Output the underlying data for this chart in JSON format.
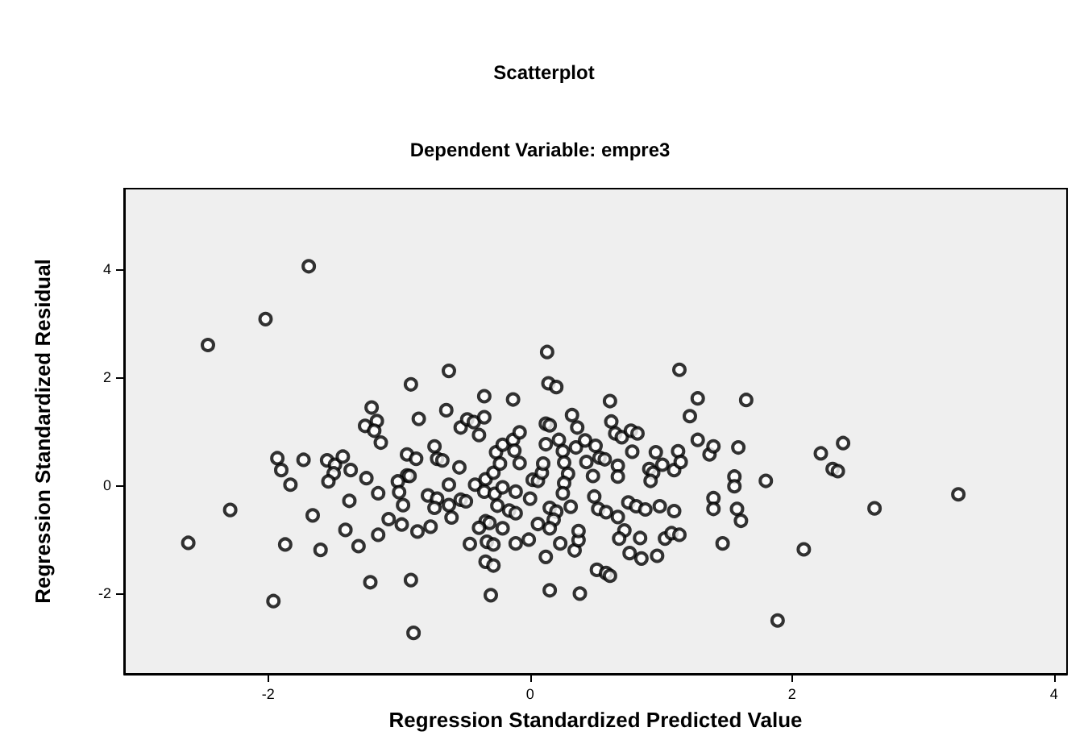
{
  "chart_data": {
    "type": "scatter",
    "title": "Scatterplot",
    "subtitle": "Dependent Variable: empre3",
    "xlabel": "Regression Standardized Predicted Value",
    "ylabel": "Regression Standardized Residual",
    "marker": "circle",
    "grid": false,
    "xlim": [
      -3.1,
      4.1
    ],
    "ylim": [
      -3.5,
      5.5
    ],
    "xticks": [
      -2,
      0,
      2,
      4
    ],
    "yticks": [
      -2,
      0,
      2,
      4
    ],
    "series": [
      {
        "color": "#000000",
        "x": [
          -1.69,
          -2.02,
          -2.46,
          -2.29,
          -2.61,
          -1.96,
          -1.87,
          -1.6,
          -1.93,
          -1.9,
          -1.83,
          -1.73,
          -1.66,
          -1.55,
          -1.49,
          -1.5,
          -1.54,
          -1.43,
          -1.37,
          -1.38,
          -1.41,
          -1.31,
          -1.25,
          -1.16,
          -1.16,
          -1.22,
          -0.91,
          -0.89,
          -1.21,
          -1.26,
          -1.17,
          -1.19,
          -1.14,
          -0.91,
          -0.85,
          -0.62,
          -0.64,
          -0.94,
          -0.87,
          -0.73,
          -0.71,
          -0.67,
          -0.94,
          -0.92,
          -1.01,
          -1.0,
          -0.97,
          -1.08,
          -0.98,
          -0.86,
          -0.76,
          -0.78,
          -0.71,
          -0.73,
          -0.62,
          -0.62,
          -0.6,
          -0.54,
          -0.53,
          -0.49,
          -0.53,
          -0.48,
          -0.43,
          -0.39,
          -0.35,
          -0.35,
          -0.13,
          0.13,
          0.14,
          0.2,
          -0.42,
          -0.34,
          -0.35,
          -0.28,
          -0.26,
          -0.21,
          -0.23,
          -0.13,
          -0.08,
          -0.12,
          -0.08,
          -0.27,
          -0.21,
          -0.25,
          -0.16,
          -0.11,
          -0.11,
          -0.34,
          -0.31,
          -0.39,
          -0.21,
          -0.46,
          -0.33,
          -0.28,
          -0.34,
          -0.28,
          -0.3,
          -0.11,
          -0.01,
          0.0,
          0.02,
          0.06,
          0.09,
          0.1,
          0.12,
          0.12,
          0.15,
          0.22,
          0.25,
          0.26,
          0.29,
          0.26,
          0.25,
          0.31,
          0.15,
          0.2,
          0.06,
          0.18,
          0.15,
          0.23,
          0.12,
          0.15,
          0.38,
          0.34,
          0.37,
          0.37,
          0.32,
          0.36,
          0.35,
          0.42,
          0.43,
          0.5,
          0.53,
          0.57,
          0.48,
          0.49,
          0.52,
          0.58,
          0.67,
          0.61,
          0.62,
          0.65,
          0.7,
          0.77,
          0.82,
          0.78,
          0.67,
          0.67,
          0.75,
          0.81,
          0.88,
          0.72,
          0.68,
          0.84,
          0.76,
          0.85,
          0.97,
          0.51,
          0.58,
          0.61,
          0.91,
          0.96,
          0.94,
          0.92,
          1.01,
          0.99,
          1.1,
          1.1,
          1.13,
          1.15,
          1.22,
          1.28,
          1.14,
          1.28,
          1.37,
          1.4,
          1.4,
          1.4,
          1.03,
          1.08,
          1.14,
          1.47,
          1.56,
          1.56,
          1.59,
          1.58,
          1.61,
          1.65,
          2.39,
          2.22,
          2.31,
          2.35,
          1.8,
          2.63,
          3.27,
          2.09,
          1.89
        ],
        "values": [
          4.06,
          3.08,
          2.6,
          -0.46,
          -1.07,
          -2.15,
          -1.1,
          -1.2,
          0.5,
          0.28,
          0.01,
          0.47,
          -0.56,
          0.46,
          0.38,
          0.22,
          0.07,
          0.53,
          0.28,
          -0.29,
          -0.83,
          -1.13,
          0.13,
          -0.15,
          -0.92,
          -1.8,
          -1.76,
          -2.74,
          1.44,
          1.1,
          1.19,
          1.01,
          0.79,
          1.87,
          1.23,
          2.12,
          1.39,
          0.57,
          0.49,
          0.72,
          0.49,
          0.46,
          0.18,
          0.17,
          0.07,
          -0.13,
          -0.37,
          -0.63,
          -0.73,
          -0.86,
          -0.77,
          -0.19,
          -0.25,
          -0.42,
          0.01,
          -0.37,
          -0.6,
          0.33,
          -0.27,
          -0.3,
          1.07,
          1.22,
          1.17,
          0.93,
          1.26,
          1.65,
          1.59,
          2.47,
          1.89,
          1.82,
          0.01,
          0.11,
          -0.12,
          0.23,
          0.61,
          0.75,
          0.4,
          0.84,
          0.98,
          0.64,
          0.41,
          -0.16,
          -0.04,
          -0.38,
          -0.47,
          -0.12,
          -0.52,
          -0.67,
          -0.7,
          -0.79,
          -0.8,
          -1.09,
          -1.05,
          -1.1,
          -1.42,
          -1.49,
          -2.04,
          -1.08,
          -1.01,
          -0.25,
          0.1,
          0.08,
          0.23,
          0.4,
          0.76,
          1.14,
          1.11,
          0.84,
          0.63,
          0.42,
          0.21,
          0.04,
          -0.15,
          -0.4,
          -0.42,
          -0.49,
          -0.72,
          -0.64,
          -0.8,
          -1.08,
          -1.33,
          -1.95,
          -2.01,
          -1.21,
          -1.02,
          -0.85,
          1.3,
          1.07,
          0.7,
          0.83,
          0.43,
          0.73,
          0.51,
          0.48,
          0.17,
          -0.21,
          -0.44,
          -0.5,
          -0.59,
          1.56,
          1.18,
          0.96,
          0.89,
          1.01,
          0.96,
          0.62,
          0.36,
          0.16,
          -0.32,
          -0.39,
          -0.45,
          -0.84,
          -0.99,
          -0.98,
          -1.26,
          -1.36,
          -1.31,
          -1.57,
          -1.63,
          -1.68,
          0.3,
          0.61,
          0.23,
          0.08,
          0.38,
          -0.39,
          -0.48,
          0.28,
          0.63,
          0.43,
          1.28,
          1.61,
          2.14,
          0.84,
          0.57,
          0.72,
          -0.24,
          -0.44,
          -0.99,
          -0.89,
          -0.92,
          -1.08,
          0.16,
          -0.02,
          0.7,
          -0.44,
          -0.66,
          1.58,
          0.78,
          0.59,
          0.3,
          0.26,
          0.08,
          -0.43,
          -0.17,
          -1.19,
          -2.51
        ]
      }
    ]
  }
}
